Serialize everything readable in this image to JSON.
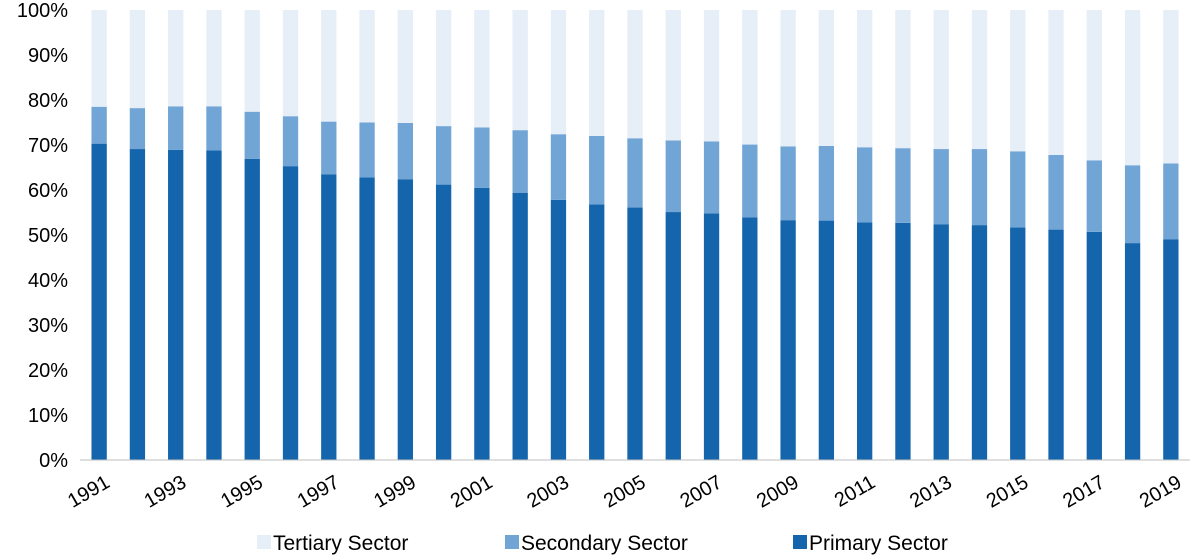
{
  "chart_data": {
    "type": "bar",
    "stacked": true,
    "categories": [
      "1991",
      "1992",
      "1993",
      "1994",
      "1995",
      "1996",
      "1997",
      "1998",
      "1999",
      "2000",
      "2001",
      "2002",
      "2003",
      "2004",
      "2005",
      "2006",
      "2007",
      "2008",
      "2009",
      "2010",
      "2011",
      "2012",
      "2013",
      "2014",
      "2015",
      "2016",
      "2017",
      "2018",
      "2019"
    ],
    "x_tick_labels": [
      "1991",
      "1993",
      "1995",
      "1997",
      "1999",
      "2001",
      "2003",
      "2005",
      "2007",
      "2009",
      "2011",
      "2013",
      "2015",
      "2017",
      "2019"
    ],
    "series": [
      {
        "name": "Primary Sector",
        "color": "#1565ad",
        "values": [
          70.3,
          69.1,
          68.9,
          68.8,
          66.9,
          65.3,
          63.5,
          62.8,
          62.4,
          61.2,
          60.5,
          59.4,
          57.8,
          56.8,
          56.1,
          55.1,
          54.8,
          53.9,
          53.3,
          53.2,
          52.8,
          52.7,
          52.4,
          52.2,
          51.7,
          51.2,
          50.7,
          48.2,
          49.0
        ]
      },
      {
        "name": "Secondary Sector",
        "color": "#71a5d6",
        "values": [
          8.2,
          9.1,
          9.7,
          9.8,
          10.5,
          11.1,
          11.7,
          12.2,
          12.5,
          13.0,
          13.4,
          13.9,
          14.6,
          15.2,
          15.4,
          15.9,
          16.0,
          16.2,
          16.4,
          16.6,
          16.7,
          16.6,
          16.7,
          16.9,
          16.9,
          16.6,
          15.9,
          17.3,
          16.9
        ]
      },
      {
        "name": "Tertiary Sector",
        "color": "#e6eef7",
        "values": [
          21.5,
          21.8,
          21.4,
          21.4,
          22.6,
          23.6,
          24.8,
          25.0,
          25.1,
          25.8,
          26.1,
          26.7,
          27.6,
          28.0,
          28.5,
          29.0,
          29.2,
          29.9,
          30.3,
          30.2,
          30.5,
          30.7,
          30.9,
          30.9,
          31.4,
          32.2,
          33.4,
          34.5,
          34.1
        ]
      }
    ],
    "y_ticks": [
      "0%",
      "10%",
      "20%",
      "30%",
      "40%",
      "50%",
      "60%",
      "70%",
      "80%",
      "90%",
      "100%"
    ],
    "ylim": [
      0,
      100
    ],
    "grid": false,
    "legend_position": "bottom",
    "legend": [
      "Tertiary Sector",
      "Secondary Sector",
      "Primary Sector"
    ]
  }
}
